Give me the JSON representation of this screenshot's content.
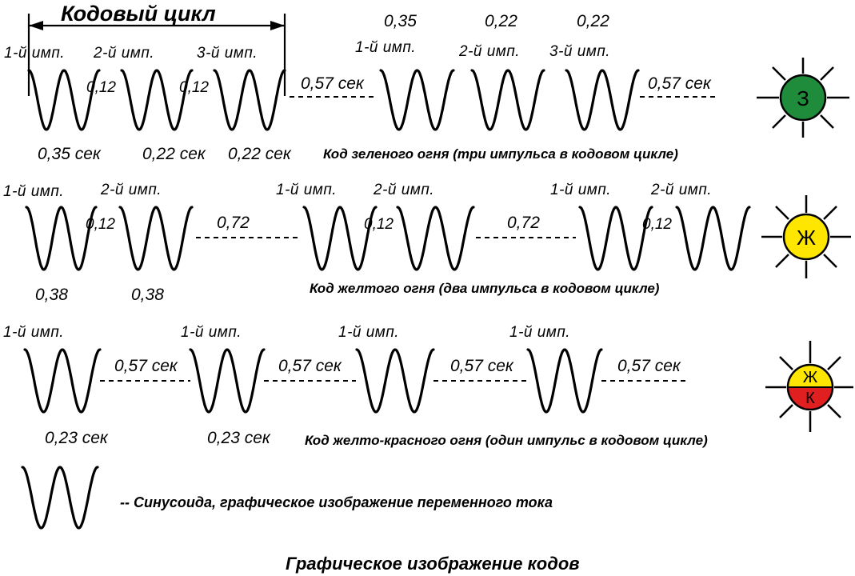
{
  "diagram": {
    "title": "Графическое изображение кодов",
    "cycle_label": "Кодовый цикл",
    "legend_text": "--  Синусоида, графическое изображение переменного тока",
    "codes": [
      {
        "id": "green",
        "caption": "Код зеленого огня (три импульса в кодовом цикле)",
        "signal": {
          "letters": [
            "З"
          ],
          "colors": [
            "#1e8c3a"
          ]
        },
        "pulse_labels": [
          "1-й имп.",
          "2-й имп.",
          "3-й имп.",
          "1-й имп.",
          "2-й имп.",
          "3-й имп."
        ],
        "interval_labels": [
          "0,12",
          "0,12"
        ],
        "duration_labels": [
          "0,35 сек",
          "0,22 сек",
          "0,22 сек"
        ],
        "top_values": [
          "0,35",
          "0,22",
          "0,22"
        ],
        "pause_labels": [
          "0,57 сек",
          "0,57 сек"
        ]
      },
      {
        "id": "yellow",
        "caption": "Код желтого огня (два импульса в кодовом цикле)",
        "signal": {
          "letters": [
            "Ж"
          ],
          "colors": [
            "#ffe600"
          ]
        },
        "pulse_labels": [
          "1-й имп.",
          "2-й имп.",
          "1-й имп.",
          "2-й имп.",
          "1-й имп.",
          "2-й имп."
        ],
        "interval_labels": [
          "0,12",
          "0,12",
          "0,12"
        ],
        "duration_labels": [
          "0,38",
          "0,38"
        ],
        "pause_labels": [
          "0,72",
          "0,72"
        ]
      },
      {
        "id": "yellow-red",
        "caption": "Код желто-красного огня (один импульс в кодовом цикле)",
        "signal": {
          "letters": [
            "Ж",
            "К"
          ],
          "colors": [
            "#ffe600",
            "#e02020"
          ]
        },
        "pulse_labels": [
          "1-й имп.",
          "1-й имп.",
          "1-й имп.",
          "1-й имп."
        ],
        "duration_labels": [
          "0,23 сек",
          "0,23 сек"
        ],
        "pause_labels": [
          "0,57 сек",
          "0,57 сек",
          "0,57 сек",
          "0,57 сек"
        ]
      }
    ]
  }
}
